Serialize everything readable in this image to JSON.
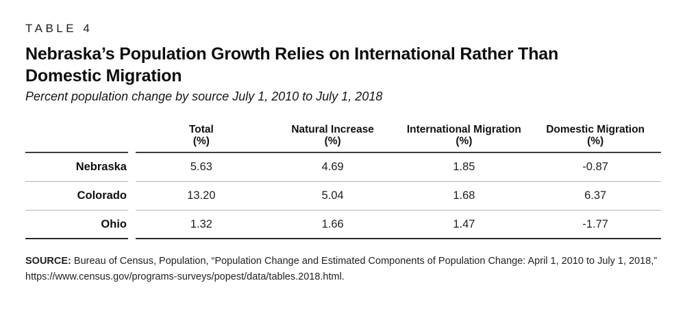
{
  "page": {
    "kicker": "TABLE 4",
    "title_lines": [
      "Nebraska’s Population Growth Relies on International Rather Than",
      "Domestic Migration"
    ],
    "subtitle": "Percent population change by source July 1, 2010 to July 1, 2018"
  },
  "table": {
    "headers": [
      {
        "label": "Total",
        "unit": "(%)"
      },
      {
        "label": "Natural Increase",
        "unit": "(%)"
      },
      {
        "label": "International Migration",
        "unit": "(%)"
      },
      {
        "label": "Domestic Migration",
        "unit": "(%)"
      }
    ],
    "rows": [
      {
        "label": "Nebraska",
        "values": [
          "5.63",
          "4.69",
          "1.85",
          "-0.87"
        ]
      },
      {
        "label": "Colorado",
        "values": [
          "13.20",
          "5.04",
          "1.68",
          "6.37"
        ]
      },
      {
        "label": "Ohio",
        "values": [
          "1.32",
          "1.66",
          "1.47",
          "-1.77"
        ]
      }
    ]
  },
  "source": {
    "label": "SOURCE:",
    "line1": " Bureau of Census, Population, “Population Change and Estimated Components of Population Change: April 1, 2010 to July 1, 2018,”",
    "line2": "https://www.census.gov/programs-surveys/popest/data/tables.2018.html."
  },
  "colors": {
    "header_rule": "#3d3d3d",
    "bottom_rule": "#282828",
    "row_separator": "#b3b3b3",
    "text": "#1a1a1a",
    "background": "#ffffff"
  }
}
